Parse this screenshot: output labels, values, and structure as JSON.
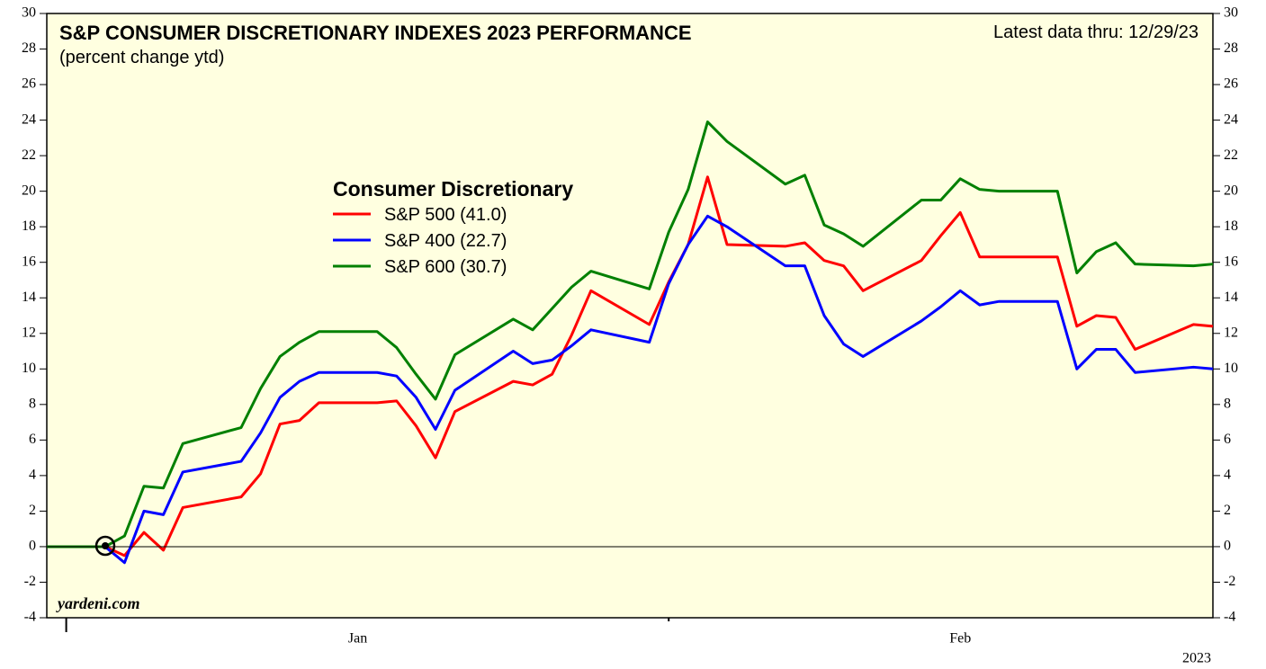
{
  "chart_data": {
    "type": "line",
    "title": "S&P CONSUMER DISCRETIONARY INDEXES 2023 PERFORMANCE",
    "subtitle": "(percent change ytd)",
    "annotation": "Latest data thru: 12/29/23",
    "legend_title": "Consumer Discretionary",
    "source": "yardeni.com",
    "year_label": "2023",
    "x": [
      0,
      3,
      4,
      5,
      6,
      7,
      10,
      11,
      12,
      13,
      14,
      17,
      18,
      19,
      20,
      21,
      24,
      25,
      26,
      27,
      28,
      31,
      32,
      33,
      34,
      35,
      38,
      39,
      40,
      41,
      42,
      45,
      46,
      47,
      48,
      49,
      52,
      53,
      54,
      55,
      56,
      59,
      60
    ],
    "xlim": [
      0,
      60
    ],
    "xticks": [
      1,
      32
    ],
    "month_labels": [
      {
        "value": 16,
        "label": "Jan"
      },
      {
        "value": 47,
        "label": "Feb"
      }
    ],
    "ylim": [
      -4,
      30
    ],
    "yticks": [
      -4,
      -2,
      0,
      2,
      4,
      6,
      8,
      10,
      12,
      14,
      16,
      18,
      20,
      22,
      24,
      26,
      28,
      30
    ],
    "series": [
      {
        "name": "S&P 500 (41.0)",
        "color": "#ff0000",
        "values": [
          0,
          0,
          -0.5,
          0.8,
          -0.2,
          2.2,
          2.8,
          4.1,
          6.9,
          7.1,
          8.1,
          8.1,
          8.2,
          6.8,
          5.0,
          7.6,
          9.3,
          9.1,
          9.7,
          11.9,
          14.4,
          12.5,
          14.9,
          17.0,
          20.8,
          17.0,
          16.9,
          17.1,
          16.1,
          15.8,
          14.4,
          16.1,
          17.5,
          18.8,
          16.3,
          16.3,
          16.3,
          12.4,
          13.0,
          12.9,
          11.1,
          12.5,
          12.4
        ]
      },
      {
        "name": "S&P 400 (22.7)",
        "color": "#0000ff",
        "values": [
          0,
          0,
          -0.9,
          2.0,
          1.8,
          4.2,
          4.8,
          6.4,
          8.4,
          9.3,
          9.8,
          9.8,
          9.6,
          8.4,
          6.6,
          8.8,
          11.0,
          10.3,
          10.5,
          11.3,
          12.2,
          11.5,
          14.8,
          17.0,
          18.6,
          18.0,
          15.8,
          15.8,
          13.0,
          11.4,
          10.7,
          12.7,
          13.5,
          14.4,
          13.6,
          13.8,
          13.8,
          10.0,
          11.1,
          11.1,
          9.8,
          10.1,
          10.0
        ]
      },
      {
        "name": "S&P 600 (30.7)",
        "color": "#008000",
        "values": [
          0,
          0,
          0.6,
          3.4,
          3.3,
          5.8,
          6.7,
          8.9,
          10.7,
          11.5,
          12.1,
          12.1,
          11.2,
          9.7,
          8.3,
          10.8,
          12.8,
          12.2,
          13.4,
          14.6,
          15.5,
          14.5,
          17.7,
          20.1,
          23.9,
          22.8,
          20.4,
          20.9,
          18.1,
          17.6,
          16.9,
          19.5,
          19.5,
          20.7,
          20.1,
          20.0,
          20.0,
          15.4,
          16.6,
          17.1,
          15.9,
          15.8,
          15.9
        ]
      }
    ]
  }
}
